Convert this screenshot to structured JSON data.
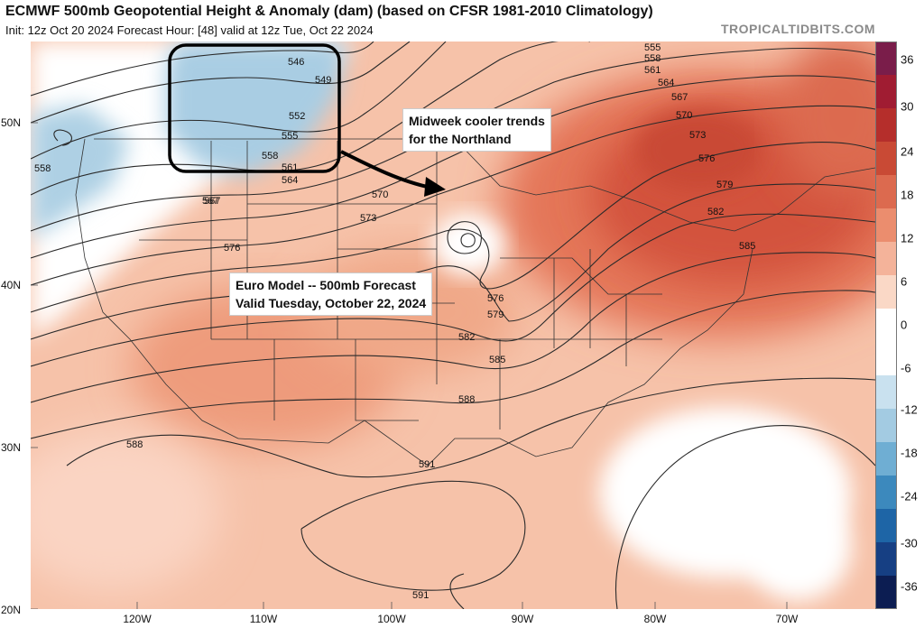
{
  "header": {
    "title": "ECMWF 500mb Geopotential Height & Anomaly (dam) (based on CFSR 1981-2010 Climatology)",
    "subtitle": "Init: 12z Oct 20 2024   Forecast Hour: [48]   valid at 12z Tue, Oct 22 2024",
    "watermark": "TROPICALTIDBITS.COM"
  },
  "annotations": {
    "northland_line1": "Midweek cooler trends",
    "northland_line2": "for the Northland",
    "euro_line1": "Euro Model -- 500mb Forecast",
    "euro_line2": "Valid Tuesday, October 22, 2024"
  },
  "colorbar": {
    "ticks": [
      "36",
      "30",
      "24",
      "18",
      "12",
      "6",
      "0",
      "-6",
      "-12",
      "-18",
      "-24",
      "-30",
      "-36"
    ],
    "colors": [
      "#7a1d4a",
      "#a01c32",
      "#b52e2b",
      "#c94a35",
      "#dc6a4f",
      "#eb8d6e",
      "#f4b39a",
      "#fad8c6",
      "#ffffff",
      "#ffffff",
      "#c9e1ef",
      "#a3cbe2",
      "#6faed3",
      "#3c89bd",
      "#1e65a6",
      "#163f83",
      "#0c1d52"
    ]
  },
  "axes": {
    "lat_labels": [
      "50N",
      "40N",
      "30N",
      "20N"
    ],
    "lon_labels": [
      "120W",
      "110W",
      "100W",
      "90W",
      "80W",
      "70W"
    ]
  },
  "contour_labels": [
    "555",
    "558",
    "561",
    "564",
    "567",
    "570",
    "573",
    "576",
    "579",
    "582",
    "585",
    "546",
    "549",
    "552",
    "555",
    "558",
    "561",
    "564",
    "567",
    "570",
    "573",
    "576",
    "579",
    "582",
    "585",
    "588",
    "591",
    "588",
    "591",
    "558",
    "576",
    "567"
  ]
}
